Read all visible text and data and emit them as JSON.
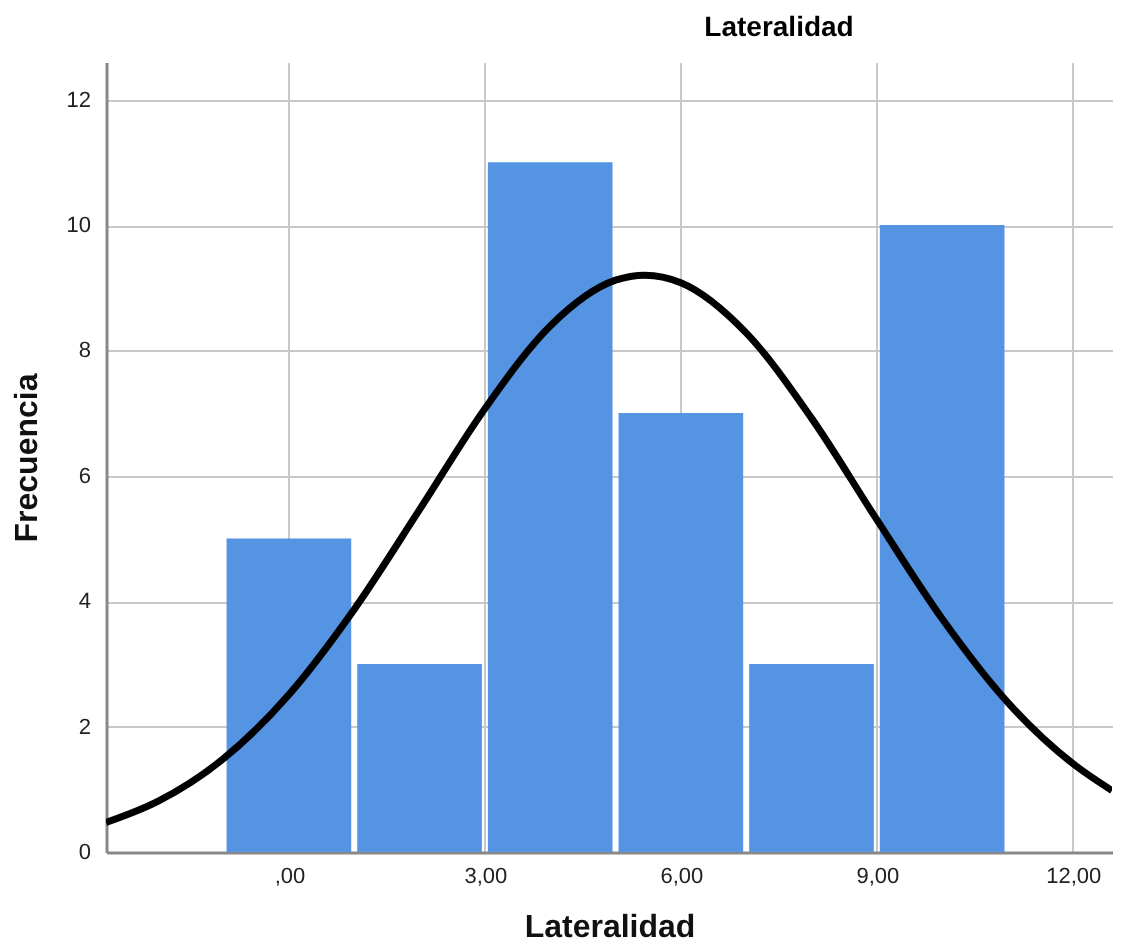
{
  "chart_data": {
    "type": "histogram",
    "title": "Lateralidad",
    "xlabel": "Lateralidad",
    "ylabel": "Frecuencia",
    "bins": [
      -1,
      1,
      3,
      5,
      7,
      9,
      11
    ],
    "values": [
      5,
      3,
      11,
      7,
      3,
      10
    ],
    "color": "#5594e3",
    "series": [
      {
        "type": "line",
        "color": "#000000",
        "x": [
          -2.8,
          -2,
          -1,
          0,
          1,
          2,
          3,
          4,
          5,
          5.45,
          6,
          7,
          8,
          9,
          10,
          11,
          12,
          12.6
        ],
        "values": [
          0.47,
          0.81,
          1.49,
          2.51,
          3.87,
          5.46,
          7.07,
          8.39,
          9.12,
          9.2,
          9.08,
          8.28,
          6.92,
          5.3,
          3.72,
          2.39,
          1.41,
          0.98
        ]
      }
    ],
    "xlim": [
      -2.8,
      12.6
    ],
    "xticks": [
      {
        "value": 0,
        "label": ",00"
      },
      {
        "value": 3,
        "label": "3,00"
      },
      {
        "value": 6,
        "label": "6,00"
      },
      {
        "value": 9,
        "label": "9,00"
      },
      {
        "value": 12,
        "label": "12,00"
      }
    ],
    "ylim": [
      0,
      12.6
    ],
    "yticks": [
      0,
      2,
      4,
      6,
      8,
      10,
      12
    ],
    "grid": true
  }
}
